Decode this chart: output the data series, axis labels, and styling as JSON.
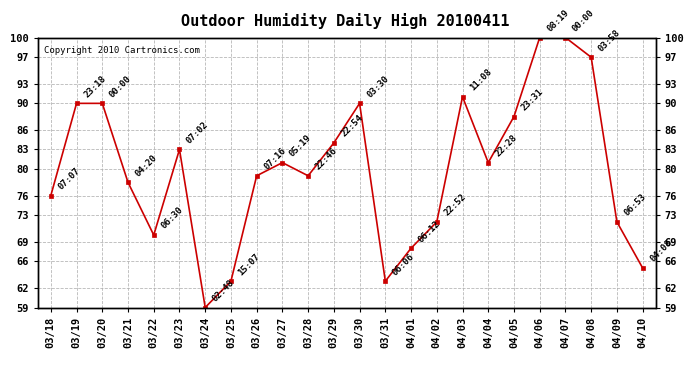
{
  "title": "Outdoor Humidity Daily High 20100411",
  "copyright": "Copyright 2010 Cartronics.com",
  "x_labels": [
    "03/18",
    "03/19",
    "03/20",
    "03/21",
    "03/22",
    "03/23",
    "03/24",
    "03/25",
    "03/26",
    "03/27",
    "03/28",
    "03/29",
    "03/30",
    "03/31",
    "04/01",
    "04/02",
    "04/03",
    "04/04",
    "04/05",
    "04/06",
    "04/07",
    "04/08",
    "04/09",
    "04/10"
  ],
  "y_values": [
    76,
    90,
    90,
    78,
    70,
    83,
    59,
    63,
    79,
    81,
    79,
    84,
    90,
    63,
    68,
    72,
    91,
    81,
    88,
    100,
    100,
    97,
    72,
    65
  ],
  "point_labels": [
    "07:07",
    "23:18",
    "00:00",
    "04:20",
    "06:30",
    "07:02",
    "02:48",
    "15:07",
    "07:16",
    "05:19",
    "22:46",
    "22:54",
    "03:30",
    "06:06",
    "06:12",
    "22:52",
    "11:08",
    "22:28",
    "23:31",
    "08:19",
    "00:00",
    "03:58",
    "06:53",
    "04:08"
  ],
  "ylim": [
    59,
    100
  ],
  "yticks": [
    59,
    62,
    66,
    69,
    73,
    76,
    80,
    83,
    86,
    90,
    93,
    97,
    100
  ],
  "line_color": "#cc0000",
  "marker_color": "#cc0000",
  "bg_color": "#ffffff",
  "grid_color": "#b0b0b0",
  "title_fontsize": 11,
  "label_fontsize": 6.5,
  "tick_fontsize": 7.5,
  "copyright_fontsize": 6.5
}
